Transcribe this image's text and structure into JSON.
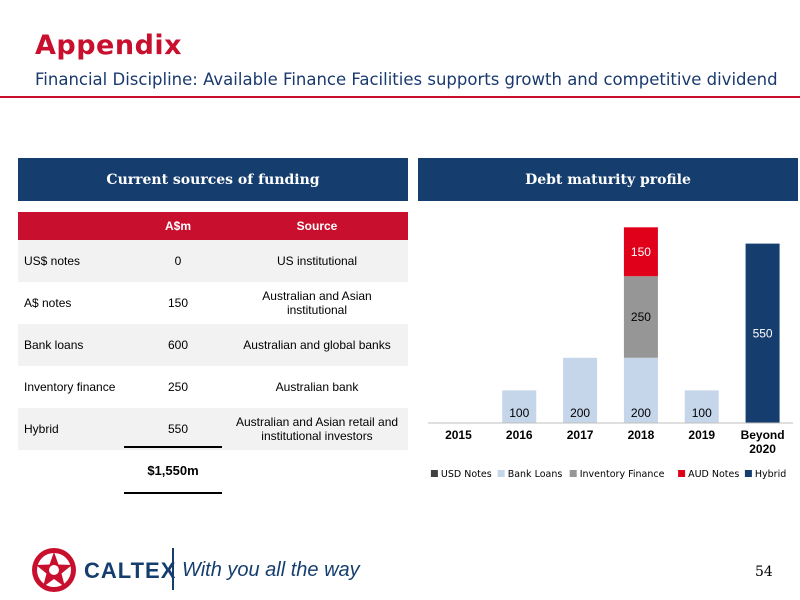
{
  "header": {
    "title": "Appendix",
    "subtitle": "Financial Discipline: Available Finance Facilities supports growth and competitive dividend"
  },
  "funding": {
    "heading": "Current sources of funding",
    "columns": [
      "",
      "A$m",
      "Source"
    ],
    "rows": [
      {
        "label": "US$ notes",
        "amount": "0",
        "source": "US institutional"
      },
      {
        "label": "A$ notes",
        "amount": "150",
        "source": "Australian and Asian institutional"
      },
      {
        "label": "Bank loans",
        "amount": "600",
        "source": "Australian and global banks"
      },
      {
        "label": "Inventory finance",
        "amount": "250",
        "source": "Australian bank"
      },
      {
        "label": "Hybrid",
        "amount": "550",
        "source": "Australian and Asian retail and institutional investors"
      }
    ],
    "total": "$1,550m"
  },
  "chart_data": {
    "type": "bar",
    "stacked": true,
    "title": "Debt maturity profile",
    "categories": [
      "2015",
      "2016",
      "2017",
      "2018",
      "2019",
      "Beyond 2020"
    ],
    "series": [
      {
        "name": "USD Notes",
        "color": "#404040",
        "values": [
          0,
          0,
          0,
          0,
          0,
          0
        ]
      },
      {
        "name": "Bank Loans",
        "color": "#c5d5ea",
        "values": [
          0,
          100,
          200,
          200,
          100,
          0
        ]
      },
      {
        "name": "Inventory Finance",
        "color": "#969696",
        "values": [
          0,
          0,
          0,
          250,
          0,
          0
        ]
      },
      {
        "name": "AUD Notes",
        "color": "#e0001a",
        "values": [
          0,
          0,
          0,
          150,
          0,
          0
        ]
      },
      {
        "name": "Hybrid",
        "color": "#153e6f",
        "values": [
          0,
          0,
          0,
          0,
          0,
          550
        ]
      }
    ],
    "ylim": [
      0,
      650
    ],
    "legend": "bottom",
    "grid": false
  },
  "footer": {
    "brand": "CALTEX",
    "tagline": "With you all the way",
    "page": "54"
  },
  "colors": {
    "accent_red": "#c8102e",
    "navy": "#153e6f"
  }
}
